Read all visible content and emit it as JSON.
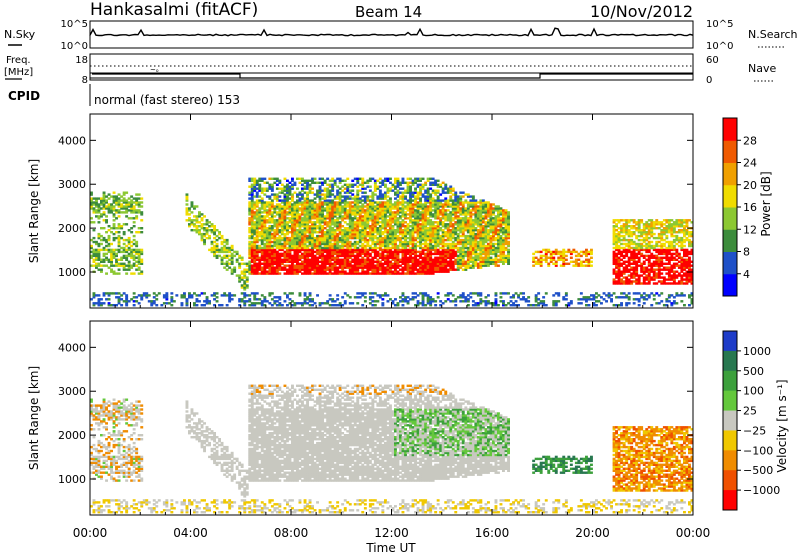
{
  "header": {
    "station": "Hankasalmi (fitACF)",
    "beam": "Beam 14",
    "date": "10/Nov/2012"
  },
  "strip1": {
    "left_label": "N.Sky",
    "right_label": "N.Search",
    "left_ticks": [
      "10^5",
      "10^0"
    ],
    "right_ticks": [
      "10^5",
      "10^0"
    ]
  },
  "strip2": {
    "left_label_1": "Freq.",
    "left_label_2": "[MHz]",
    "right_label": "Nave",
    "left_ticks": [
      "18",
      "8"
    ],
    "right_ticks": [
      "60",
      "0"
    ]
  },
  "cpid": {
    "label": "CPID",
    "value": "normal (fast stereo) 153"
  },
  "chart_data": [
    {
      "type": "heatmap",
      "name": "power",
      "ylabel": "Slant Range [km]",
      "yticks": [
        "4000",
        "3000",
        "2000",
        "1000"
      ],
      "ylim": [
        180,
        4600
      ],
      "colorbar_label": "Power [dB]",
      "colorbar_ticks": [
        "28",
        "24",
        "20",
        "16",
        "12",
        "8",
        "4"
      ],
      "colors": [
        "#0000ff",
        "#1e50c8",
        "#3c8c3c",
        "#8cc832",
        "#f0dc00",
        "#f0a000",
        "#f05a00",
        "#ff0000"
      ]
    },
    {
      "type": "heatmap",
      "name": "velocity",
      "ylabel": "Slant Range [km]",
      "yticks": [
        "4000",
        "3000",
        "2000",
        "1000"
      ],
      "ylim": [
        180,
        4600
      ],
      "colorbar_label": "Velocity [m s⁻¹]",
      "colorbar_ticks": [
        "1000",
        "500",
        "100",
        "25",
        "−25",
        "−100",
        "−500",
        "−1000"
      ],
      "colors": [
        "#1e3cc8",
        "#287850",
        "#3ca03c",
        "#64c83c",
        "#c8c8c0",
        "#f0c800",
        "#f08c00",
        "#f05000",
        "#ff0000"
      ]
    }
  ],
  "xaxis": {
    "ticks": [
      "00:00",
      "04:00",
      "08:00",
      "12:00",
      "16:00",
      "20:00",
      "00:00"
    ],
    "label": "Time UT"
  }
}
